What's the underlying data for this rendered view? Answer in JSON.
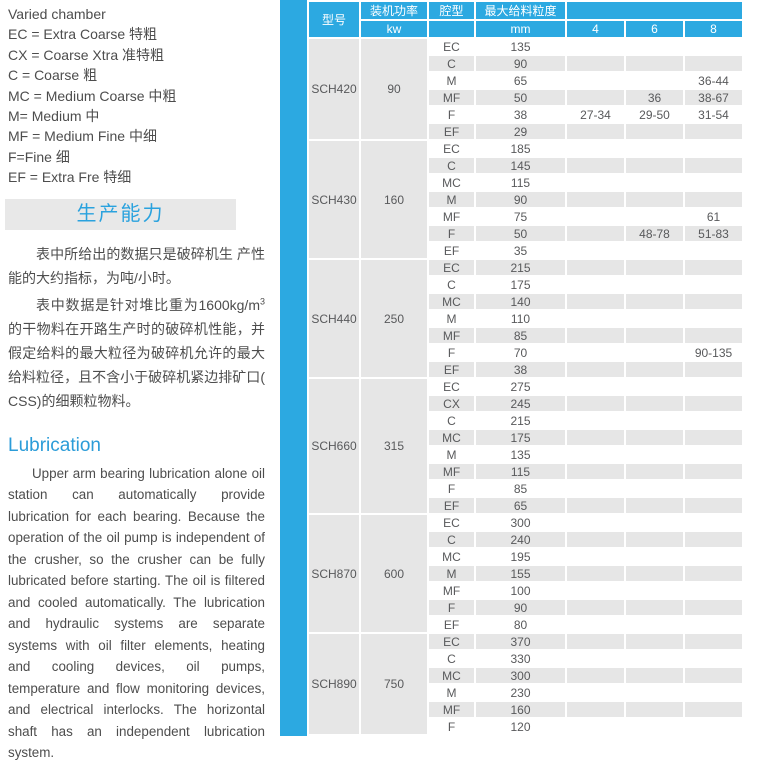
{
  "left_panel": {
    "varied_chamber_title": "Varied chamber",
    "chamber_legend": [
      "EC = Extra Coarse 特粗",
      "CX = Coarse Xtra 准特粗",
      "C = Coarse 粗",
      "MC = Medium Coarse 中粗",
      "M= Medium 中",
      "MF = Medium Fine 中细",
      "F=Fine 细",
      "EF = Extra Fre 特细"
    ],
    "capacity_banner": "生产能力",
    "para1": "表中所给出的数据只是破碎机生 产性能的大约指标，为吨/小时。",
    "para2_prefix": "表中数据是针对堆比重为1600kg/m",
    "para2_sup": "3",
    "para2_suffix": "的干物料在开路生产时的破碎机性能，并假定给料的最大粒径为破碎机允许的最大给料粒径，且不含小于破碎机紧边排矿口( CSS)的细颗粒物料。",
    "lubrication_title": "Lubrication",
    "lubrication_text": "Upper arm bearing lubrication alone oil station can automatically provide lubrication for each bearing. Because the operation of the oil pump is independent of the crusher, so the crusher can be fully lubricated before starting. The oil is filtered and cooled automatically. The lubrication and hydraulic systems are separate systems with oil filter elements, heating and cooling devices, oil pumps, temperature and flow monitoring devices, and electrical interlocks. The horizontal shaft has an independent lubrication system."
  },
  "table": {
    "headers": {
      "model": "型号",
      "power": "装机功率",
      "power_unit": "kw",
      "chamber": "腔型",
      "max_feed": "最大给料粒度",
      "feed_unit": "mm",
      "css_cols": [
        "4",
        "6",
        "8"
      ]
    },
    "groups": [
      {
        "model": "SCH420",
        "power": "90",
        "rows": [
          {
            "chamber": "EC",
            "mm": "135",
            "c4": "",
            "c6": "",
            "c8": ""
          },
          {
            "chamber": "C",
            "mm": "90",
            "c4": "",
            "c6": "",
            "c8": ""
          },
          {
            "chamber": "M",
            "mm": "65",
            "c4": "",
            "c6": "",
            "c8": "36-44"
          },
          {
            "chamber": "MF",
            "mm": "50",
            "c4": "",
            "c6": "36",
            "c8": "38-67"
          },
          {
            "chamber": "F",
            "mm": "38",
            "c4": "27-34",
            "c6": "29-50",
            "c8": "31-54"
          },
          {
            "chamber": "EF",
            "mm": "29",
            "c4": "",
            "c6": "",
            "c8": ""
          }
        ]
      },
      {
        "model": "SCH430",
        "power": "160",
        "rows": [
          {
            "chamber": "EC",
            "mm": "185",
            "c4": "",
            "c6": "",
            "c8": ""
          },
          {
            "chamber": "C",
            "mm": "145",
            "c4": "",
            "c6": "",
            "c8": ""
          },
          {
            "chamber": "MC",
            "mm": "115",
            "c4": "",
            "c6": "",
            "c8": ""
          },
          {
            "chamber": "M",
            "mm": "90",
            "c4": "",
            "c6": "",
            "c8": ""
          },
          {
            "chamber": "MF",
            "mm": "75",
            "c4": "",
            "c6": "",
            "c8": "61"
          },
          {
            "chamber": "F",
            "mm": "50",
            "c4": "",
            "c6": "48-78",
            "c8": "51-83"
          },
          {
            "chamber": "EF",
            "mm": "35",
            "c4": "",
            "c6": "",
            "c8": ""
          }
        ]
      },
      {
        "model": "SCH440",
        "power": "250",
        "rows": [
          {
            "chamber": "EC",
            "mm": "215",
            "c4": "",
            "c6": "",
            "c8": ""
          },
          {
            "chamber": "C",
            "mm": "175",
            "c4": "",
            "c6": "",
            "c8": ""
          },
          {
            "chamber": "MC",
            "mm": "140",
            "c4": "",
            "c6": "",
            "c8": ""
          },
          {
            "chamber": "M",
            "mm": "110",
            "c4": "",
            "c6": "",
            "c8": ""
          },
          {
            "chamber": "MF",
            "mm": "85",
            "c4": "",
            "c6": "",
            "c8": ""
          },
          {
            "chamber": "F",
            "mm": "70",
            "c4": "",
            "c6": "",
            "c8": "90-135"
          },
          {
            "chamber": "EF",
            "mm": "38",
            "c4": "",
            "c6": "",
            "c8": ""
          }
        ]
      },
      {
        "model": "SCH660",
        "power": "315",
        "rows": [
          {
            "chamber": "EC",
            "mm": "275",
            "c4": "",
            "c6": "",
            "c8": ""
          },
          {
            "chamber": "CX",
            "mm": "245",
            "c4": "",
            "c6": "",
            "c8": ""
          },
          {
            "chamber": "C",
            "mm": "215",
            "c4": "",
            "c6": "",
            "c8": ""
          },
          {
            "chamber": "MC",
            "mm": "175",
            "c4": "",
            "c6": "",
            "c8": ""
          },
          {
            "chamber": "M",
            "mm": "135",
            "c4": "",
            "c6": "",
            "c8": ""
          },
          {
            "chamber": "MF",
            "mm": "115",
            "c4": "",
            "c6": "",
            "c8": ""
          },
          {
            "chamber": "F",
            "mm": "85",
            "c4": "",
            "c6": "",
            "c8": ""
          },
          {
            "chamber": "EF",
            "mm": "65",
            "c4": "",
            "c6": "",
            "c8": ""
          }
        ]
      },
      {
        "model": "SCH870",
        "power": "600",
        "rows": [
          {
            "chamber": "EC",
            "mm": "300",
            "c4": "",
            "c6": "",
            "c8": ""
          },
          {
            "chamber": "C",
            "mm": "240",
            "c4": "",
            "c6": "",
            "c8": ""
          },
          {
            "chamber": "MC",
            "mm": "195",
            "c4": "",
            "c6": "",
            "c8": ""
          },
          {
            "chamber": "M",
            "mm": "155",
            "c4": "",
            "c6": "",
            "c8": ""
          },
          {
            "chamber": "MF",
            "mm": "100",
            "c4": "",
            "c6": "",
            "c8": ""
          },
          {
            "chamber": "F",
            "mm": "90",
            "c4": "",
            "c6": "",
            "c8": ""
          },
          {
            "chamber": "EF",
            "mm": "80",
            "c4": "",
            "c6": "",
            "c8": ""
          }
        ]
      },
      {
        "model": "SCH890",
        "power": "750",
        "rows": [
          {
            "chamber": "EC",
            "mm": "370",
            "c4": "",
            "c6": "",
            "c8": ""
          },
          {
            "chamber": "C",
            "mm": "330",
            "c4": "",
            "c6": "",
            "c8": ""
          },
          {
            "chamber": "MC",
            "mm": "300",
            "c4": "",
            "c6": "",
            "c8": ""
          },
          {
            "chamber": "M",
            "mm": "230",
            "c4": "",
            "c6": "",
            "c8": ""
          },
          {
            "chamber": "MF",
            "mm": "160",
            "c4": "",
            "c6": "",
            "c8": ""
          },
          {
            "chamber": "F",
            "mm": "120",
            "c4": "",
            "c6": "",
            "c8": ""
          }
        ]
      }
    ]
  },
  "colors": {
    "accent_blue": "#2CA9E1",
    "header_light_blue": "#50BCE9",
    "row_gray": "#E6E6E6",
    "banner_gray": "#E8E8E8",
    "heading_blue": "#2B9CD8",
    "table_text": "#58595B",
    "body_text": "#4D4D4D"
  }
}
